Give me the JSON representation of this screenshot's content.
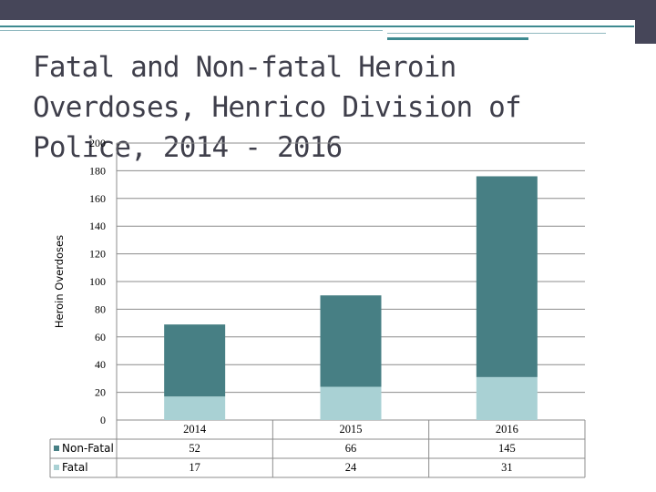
{
  "colors": {
    "nonfatal": "#477f84",
    "fatal": "#a9d1d4",
    "header": "#464659",
    "accent": "#3e8a90"
  },
  "chart_data": {
    "type": "bar",
    "stacked": true,
    "title": "Fatal and Non-fatal Heroin Overdoses, Henrico Division of Police, 2014 - 2016",
    "ylabel": "Heroin Overdoses",
    "xlabel": "",
    "ylim": [
      0,
      200
    ],
    "yticks": [
      0,
      20,
      40,
      60,
      80,
      100,
      120,
      140,
      160,
      180,
      200
    ],
    "categories": [
      "2014",
      "2015",
      "2016"
    ],
    "series": [
      {
        "name": "Fatal",
        "values": [
          17,
          24,
          31
        ]
      },
      {
        "name": "Non-Fatal",
        "values": [
          52,
          66,
          145
        ]
      }
    ],
    "table": {
      "rows": [
        {
          "label": "Non-Fatal",
          "values": [
            "52",
            "66",
            "145"
          ]
        },
        {
          "label": "Fatal",
          "values": [
            "17",
            "24",
            "31"
          ]
        }
      ]
    },
    "grid": true
  }
}
